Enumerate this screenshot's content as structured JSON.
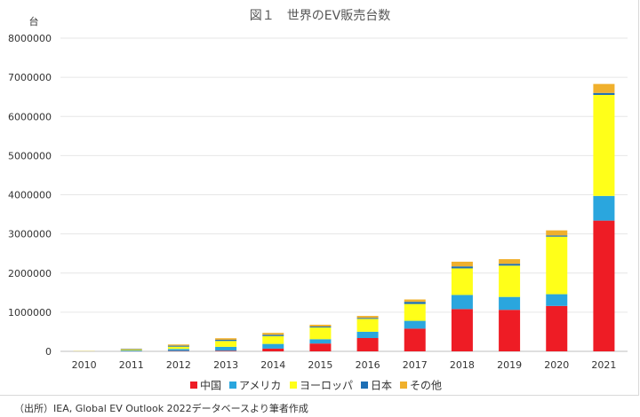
{
  "chart_data": {
    "type": "bar",
    "stacked": true,
    "title": "図１　世界のEV販売台数",
    "ylabel": "台",
    "xlabel": "",
    "ylim": [
      0,
      8000000
    ],
    "yticks": [
      "0",
      "1000000",
      "2000000",
      "3000000",
      "4000000",
      "5000000",
      "6000000",
      "7000000",
      "8000000"
    ],
    "grid": true,
    "legend_position": "bottom",
    "categories": [
      "2010",
      "2011",
      "2012",
      "2013",
      "2014",
      "2015",
      "2016",
      "2017",
      "2018",
      "2019",
      "2020",
      "2021"
    ],
    "series": [
      {
        "name": "中国",
        "color": "#ee1c25",
        "values": [
          1000,
          5000,
          10000,
          15000,
          70000,
          200000,
          340000,
          580000,
          1080000,
          1060000,
          1160000,
          3340000
        ]
      },
      {
        "name": "アメリカ",
        "color": "#2aa6de",
        "values": [
          1000,
          18000,
          50000,
          100000,
          120000,
          110000,
          160000,
          200000,
          360000,
          330000,
          300000,
          630000
        ]
      },
      {
        "name": "ヨーロッパ",
        "color": "#ffff19",
        "values": [
          5000,
          20000,
          60000,
          150000,
          200000,
          300000,
          330000,
          430000,
          680000,
          800000,
          1470000,
          2580000
        ]
      },
      {
        "name": "日本",
        "color": "#1e6fb5",
        "values": [
          500,
          13000,
          25000,
          30000,
          32000,
          25000,
          25000,
          55000,
          50000,
          45000,
          30000,
          50000
        ]
      },
      {
        "name": "その他",
        "color": "#f0b02c",
        "values": [
          2000,
          10000,
          30000,
          40000,
          50000,
          45000,
          50000,
          60000,
          120000,
          120000,
          130000,
          230000
        ]
      }
    ]
  },
  "source_text": "（出所）IEA, Global EV Outlook 2022データベースより筆者作成"
}
